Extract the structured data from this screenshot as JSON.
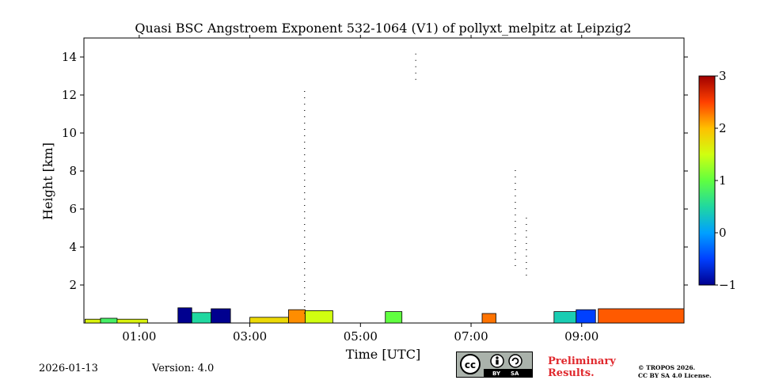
{
  "chart_data": {
    "type": "heatmap",
    "title": "Quasi BSC Angstroem Exponent 532-1064 (V1) of pollyxt_melpitz at Leipzig2",
    "xlabel": "Time [UTC]",
    "ylabel": "Height [km]",
    "x_range_hours": [
      0.0,
      10.85
    ],
    "ylim": [
      0,
      15
    ],
    "x_ticks": [
      {
        "value": 1,
        "label": "01:00"
      },
      {
        "value": 3,
        "label": "03:00"
      },
      {
        "value": 5,
        "label": "05:00"
      },
      {
        "value": 7,
        "label": "07:00"
      },
      {
        "value": 9,
        "label": "09:00"
      }
    ],
    "y_ticks": [
      {
        "value": 2,
        "label": "2"
      },
      {
        "value": 4,
        "label": "4"
      },
      {
        "value": 6,
        "label": "6"
      },
      {
        "value": 8,
        "label": "8"
      },
      {
        "value": 10,
        "label": "10"
      },
      {
        "value": 12,
        "label": "12"
      },
      {
        "value": 14,
        "label": "14"
      }
    ],
    "colorbar": {
      "colormap": "jet",
      "range": [
        -1,
        3
      ],
      "ticks": [
        {
          "value": 3,
          "label": "3"
        },
        {
          "value": 2,
          "label": "2"
        },
        {
          "value": 1,
          "label": "1"
        },
        {
          "value": 0,
          "label": "0"
        },
        {
          "value": -1,
          "label": "−1"
        }
      ]
    },
    "features": [
      {
        "t0": 0.02,
        "t1": 1.15,
        "h_top": 0.2,
        "value": 1.6
      },
      {
        "t0": 0.3,
        "t1": 0.6,
        "h_top": 0.25,
        "value": 0.8
      },
      {
        "t0": 1.7,
        "t1": 1.95,
        "h_top": 0.8,
        "value": -1.0
      },
      {
        "t0": 1.95,
        "t1": 2.3,
        "h_top": 0.55,
        "value": 0.5
      },
      {
        "t0": 2.3,
        "t1": 2.65,
        "h_top": 0.75,
        "value": -1.0
      },
      {
        "t0": 3.0,
        "t1": 3.7,
        "h_top": 0.3,
        "value": 1.8
      },
      {
        "t0": 3.7,
        "t1": 4.0,
        "h_top": 0.7,
        "value": 2.2
      },
      {
        "t0": 4.0,
        "t1": 4.5,
        "h_top": 0.65,
        "value": 1.5
      },
      {
        "t0": 5.45,
        "t1": 5.75,
        "h_top": 0.6,
        "value": 1.0
      },
      {
        "t0": 7.2,
        "t1": 7.45,
        "h_top": 0.5,
        "value": 2.3
      },
      {
        "t0": 8.5,
        "t1": 8.9,
        "h_top": 0.6,
        "value": 0.4
      },
      {
        "t0": 8.9,
        "t1": 9.25,
        "h_top": 0.7,
        "value": -0.5
      },
      {
        "t0": 9.3,
        "t1": 10.85,
        "h_top": 0.75,
        "value": 2.4
      }
    ],
    "scatter_signals": [
      {
        "t": 3.99,
        "h_min": 0.5,
        "h_max": 12.5
      },
      {
        "t": 6.0,
        "h_min": 12.8,
        "h_max": 14.2
      },
      {
        "t": 7.8,
        "h_min": 3.0,
        "h_max": 8.3
      },
      {
        "t": 8.0,
        "h_min": 2.5,
        "h_max": 5.6
      }
    ]
  },
  "footer": {
    "date": "2026-01-13",
    "version": "Version: 4.0",
    "license_badge": {
      "by": "BY",
      "sa": "SA",
      "icon": "creative-commons-icon"
    },
    "preliminary_line1": "Preliminary",
    "preliminary_line2": "Results.",
    "copyright_line1": "© TROPOS 2026.",
    "copyright_line2": "CC BY SA 4.0 License."
  }
}
